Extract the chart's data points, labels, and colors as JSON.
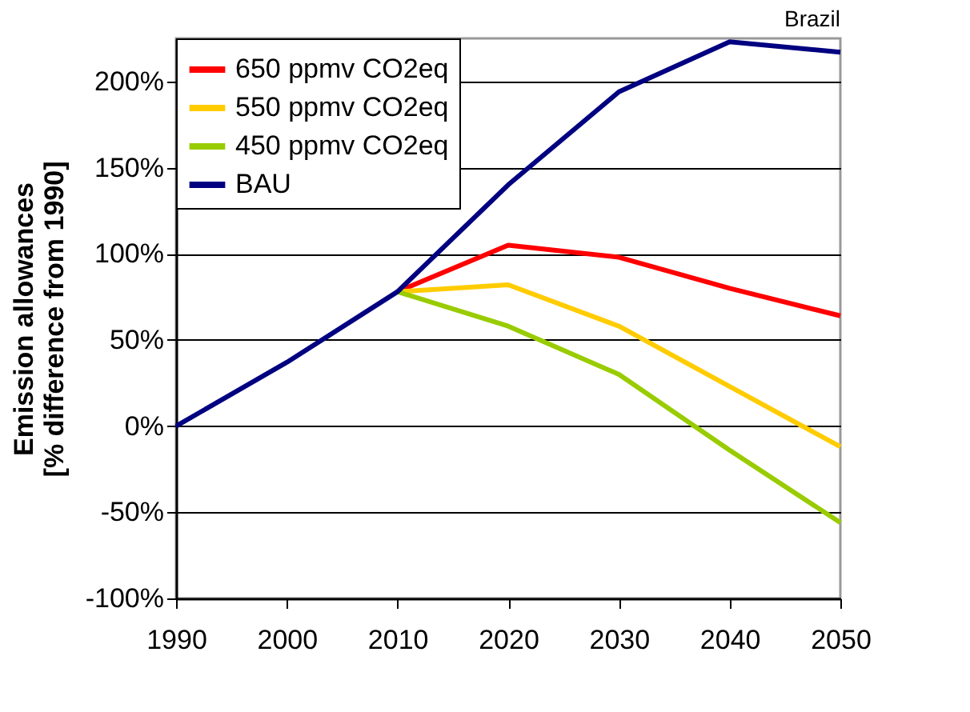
{
  "chart_data": {
    "type": "line",
    "title": "Brazil",
    "ylabel": "Emission allowances\n[% difference from 1990]",
    "xlim": [
      1990,
      2050
    ],
    "xticks": [
      1990,
      2000,
      2010,
      2020,
      2030,
      2040,
      2050
    ],
    "ylim": [
      -100,
      225
    ],
    "yticks": [
      {
        "value": -100,
        "label": "-100%"
      },
      {
        "value": -50,
        "label": "-50%"
      },
      {
        "value": 0,
        "label": "0%"
      },
      {
        "value": 50,
        "label": "50%"
      },
      {
        "value": 100,
        "label": "100%"
      },
      {
        "value": 150,
        "label": "150%"
      },
      {
        "value": 200,
        "label": "200%"
      }
    ],
    "grid": "y",
    "legend": "top left",
    "marker": "none",
    "line_style": "solid",
    "series": [
      {
        "name": "650 ppmv CO2eq",
        "color": "#ff0000",
        "x": [
          2010,
          2020,
          2030,
          2040,
          2050
        ],
        "values": [
          78,
          105,
          98,
          80,
          64
        ]
      },
      {
        "name": "550 ppmv CO2eq",
        "color": "#ffcc00",
        "x": [
          2010,
          2020,
          2030,
          2040,
          2050
        ],
        "values": [
          78,
          82,
          58,
          23,
          -12
        ]
      },
      {
        "name": "450 ppmv CO2eq",
        "color": "#99cc00",
        "x": [
          2010,
          2020,
          2030,
          2040,
          2050
        ],
        "values": [
          78,
          58,
          30,
          -14,
          -56
        ]
      },
      {
        "name": "BAU",
        "color": "#000080",
        "x": [
          1990,
          2000,
          2010,
          2020,
          2030,
          2040,
          2050
        ],
        "values": [
          0,
          37,
          78,
          140,
          194,
          223,
          217
        ]
      }
    ]
  }
}
